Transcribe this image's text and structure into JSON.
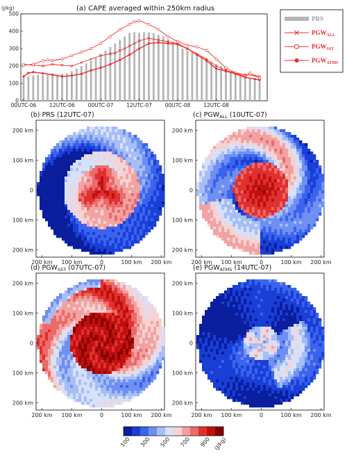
{
  "chart_data": [
    {
      "type": "bar",
      "title": "(a) CAPE averaged within 250km radius",
      "ylabel": "(J/kg)",
      "ylim": [
        0,
        500
      ],
      "yticks": [
        "0",
        "100",
        "200",
        "300",
        "400",
        "500"
      ],
      "xtick_labels": [
        "00UTC-06",
        "12UTC-06",
        "00UTC-07",
        "12UTC-07",
        "00UTC-08",
        "12UTC-08"
      ],
      "x_hours_from": "00UTC-06",
      "legend": {
        "placement": "top-right",
        "entries": [
          {
            "name": "PRS",
            "sub": "",
            "style": "bar"
          },
          {
            "name": "PGW",
            "sub": "ALL",
            "style": "x-line"
          },
          {
            "name": "PGW",
            "sub": "SST",
            "style": "open-circle-line"
          },
          {
            "name": "PGW",
            "sub": "ATMS",
            "style": "filled-circle-line"
          }
        ]
      },
      "colors": {
        "bar": "#b4b4b4",
        "line": "#ee2b2b"
      },
      "series": [
        {
          "name": "PRS",
          "type": "bar",
          "values_every_2h": [
            135,
            140,
            145,
            150,
            148,
            150,
            152,
            150,
            155,
            158,
            170,
            185,
            200,
            215,
            230,
            250,
            270,
            290,
            310,
            330,
            350,
            370,
            390,
            395,
            392,
            395,
            393,
            388,
            380,
            370,
            355,
            340,
            320,
            300,
            290,
            280,
            270,
            255,
            240,
            225,
            210,
            200,
            185,
            170,
            160,
            150,
            140,
            130,
            125,
            120
          ]
        },
        {
          "name": "PGW_ALL",
          "points": [
            [
              0,
              210
            ],
            [
              4,
              205
            ],
            [
              8,
              200
            ],
            [
              12,
              210
            ],
            [
              16,
              205
            ],
            [
              20,
              200
            ],
            [
              24,
              220
            ],
            [
              28,
              240
            ],
            [
              32,
              260
            ],
            [
              36,
              270
            ],
            [
              38,
              275
            ],
            [
              40,
              290
            ],
            [
              42,
              300
            ],
            [
              44,
              315
            ],
            [
              46,
              330
            ],
            [
              48,
              345
            ],
            [
              52,
              360
            ],
            [
              56,
              350
            ],
            [
              60,
              340
            ],
            [
              64,
              330
            ],
            [
              68,
              300
            ],
            [
              72,
              270
            ],
            [
              76,
              240
            ],
            [
              80,
              200
            ],
            [
              84,
              175
            ],
            [
              88,
              160
            ],
            [
              92,
              150
            ],
            [
              96,
              145
            ],
            [
              98,
              140
            ]
          ]
        },
        {
          "name": "PGW_SST",
          "points": [
            [
              0,
              205
            ],
            [
              4,
              210
            ],
            [
              8,
              230
            ],
            [
              10,
              235
            ],
            [
              12,
              232
            ],
            [
              16,
              240
            ],
            [
              20,
              260
            ],
            [
              24,
              280
            ],
            [
              28,
              300
            ],
            [
              32,
              330
            ],
            [
              36,
              370
            ],
            [
              40,
              410
            ],
            [
              44,
              440
            ],
            [
              46,
              455
            ],
            [
              48,
              460
            ],
            [
              52,
              440
            ],
            [
              56,
              410
            ],
            [
              60,
              370
            ],
            [
              64,
              340
            ],
            [
              68,
              320
            ],
            [
              72,
              310
            ],
            [
              76,
              290
            ],
            [
              80,
              240
            ],
            [
              84,
              190
            ],
            [
              88,
              160
            ],
            [
              92,
              140
            ],
            [
              94,
              160
            ],
            [
              98,
              130
            ]
          ]
        },
        {
          "name": "PGW_ATMS",
          "points": [
            [
              0,
              140
            ],
            [
              2,
              160
            ],
            [
              4,
              165
            ],
            [
              8,
              158
            ],
            [
              12,
              150
            ],
            [
              16,
              140
            ],
            [
              20,
              145
            ],
            [
              24,
              155
            ],
            [
              28,
              175
            ],
            [
              32,
              190
            ],
            [
              36,
              210
            ],
            [
              40,
              235
            ],
            [
              44,
              265
            ],
            [
              48,
              300
            ],
            [
              52,
              330
            ],
            [
              56,
              335
            ],
            [
              60,
              330
            ],
            [
              64,
              325
            ],
            [
              68,
              300
            ],
            [
              72,
              265
            ],
            [
              76,
              230
            ],
            [
              80,
              185
            ],
            [
              84,
              170
            ],
            [
              88,
              155
            ],
            [
              92,
              135
            ],
            [
              96,
              125
            ],
            [
              98,
              120
            ]
          ]
        }
      ]
    },
    {
      "type": "heatmap",
      "title": "(b) PRS (12UTC-07)",
      "shown_title": "(b) PRS (12UTC-07)",
      "pattern": "compact-core"
    },
    {
      "type": "heatmap",
      "title": "(c) PGW_ALL (10UTC-07)",
      "shown_title": "(c) PGW",
      "shown_sub": "ALL",
      "shown_tail": " (10UTC-07)",
      "pattern": "strong-spiral"
    },
    {
      "type": "heatmap",
      "title": "(d) PGW_SST (07UTC-07)",
      "shown_title": "(d) PGW",
      "shown_sub": "SST",
      "shown_tail": " (07UTC-07)",
      "pattern": "broad-high"
    },
    {
      "type": "heatmap",
      "title": "(e) PGW_ATMS (14UTC-07)",
      "shown_title": "(e) PGW",
      "shown_sub": "ATMS",
      "shown_tail": " (14UTC-07)",
      "pattern": "weak"
    }
  ],
  "map_axes": {
    "y_ticks": [
      "200 km",
      "100 km",
      "0",
      "100 km",
      "200 km"
    ],
    "x_ticks": [
      "200 km",
      "100 km",
      "0",
      "100 km",
      "200 km"
    ]
  },
  "colorbar": {
    "labels": [
      "100",
      "300",
      "500",
      "700",
      "900"
    ],
    "unit": "(J/kg)",
    "colors": [
      "#0a1e9e",
      "#1a3fd6",
      "#3a63ee",
      "#6f8ff2",
      "#a6bdf6",
      "#d6e1fa",
      "#f6d2d2",
      "#f2a2a2",
      "#ec6a6a",
      "#e03030",
      "#c01010",
      "#8a0000"
    ]
  }
}
